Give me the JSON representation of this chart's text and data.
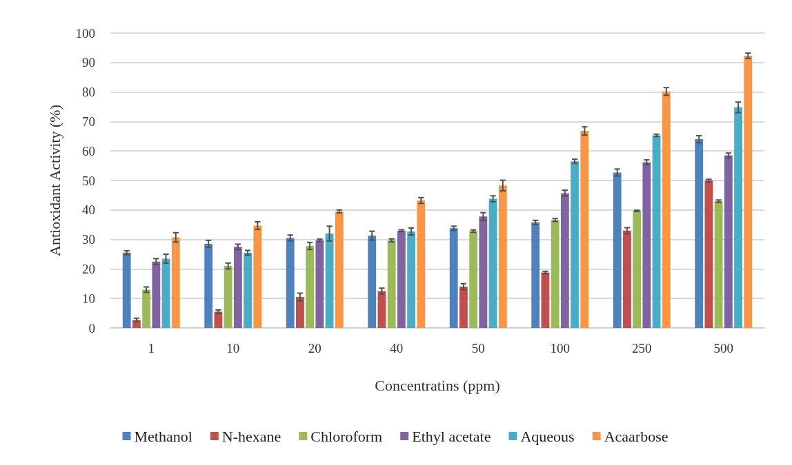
{
  "chart_data": {
    "type": "bar",
    "xlabel": "Concentratins (ppm)",
    "ylabel": "Antioxidant Activity (%)",
    "categories": [
      "1",
      "10",
      "20",
      "40",
      "50",
      "100",
      "250",
      "500"
    ],
    "series": [
      {
        "name": "Methanol",
        "color": "#4f81bd",
        "values": [
          25.5,
          28.5,
          30.5,
          31.3,
          33.8,
          35.8,
          52.7,
          64
        ],
        "errors": [
          0.7,
          1.2,
          1,
          1.5,
          0.7,
          0.7,
          1.2,
          1.2
        ]
      },
      {
        "name": "N-hexane",
        "color": "#c0504d",
        "values": [
          2.7,
          5.5,
          10.5,
          12.5,
          14,
          18.8,
          33,
          50
        ],
        "errors": [
          0.6,
          0.6,
          1.3,
          1,
          1,
          0.4,
          1,
          0.4
        ]
      },
      {
        "name": "Chloroform",
        "color": "#9bbb59",
        "values": [
          13,
          21,
          27.8,
          29.7,
          32.8,
          36.6,
          39.7,
          43
        ],
        "errors": [
          0.9,
          1,
          1.2,
          0.5,
          0.4,
          0.5,
          0.2,
          0.4
        ]
      },
      {
        "name": "Ethyl acetate",
        "color": "#8064a2",
        "values": [
          22.5,
          27.5,
          29.7,
          33,
          37.8,
          45.7,
          56.2,
          58.5
        ],
        "errors": [
          1,
          0.9,
          0.4,
          0.3,
          1.3,
          1,
          0.8,
          0.8
        ]
      },
      {
        "name": "Aqueous",
        "color": "#4bacc6",
        "values": [
          23.5,
          25.5,
          32,
          32.7,
          43.8,
          56.5,
          65.3,
          74.8
        ],
        "errors": [
          1.5,
          0.8,
          2.5,
          1.2,
          1,
          0.7,
          0.4,
          1.8
        ]
      },
      {
        "name": "Acaarbose",
        "color": "#f79646",
        "values": [
          30.7,
          34.7,
          39.5,
          43.2,
          48.3,
          66.8,
          80.2,
          92.3
        ],
        "errors": [
          1.6,
          1.3,
          0.5,
          1,
          1.8,
          1.4,
          1.3,
          0.9
        ]
      }
    ],
    "ylim": [
      0,
      100
    ],
    "yticks": [
      0,
      10,
      20,
      30,
      40,
      50,
      60,
      70,
      80,
      90,
      100
    ],
    "grid": "y",
    "legend": "bottom"
  }
}
